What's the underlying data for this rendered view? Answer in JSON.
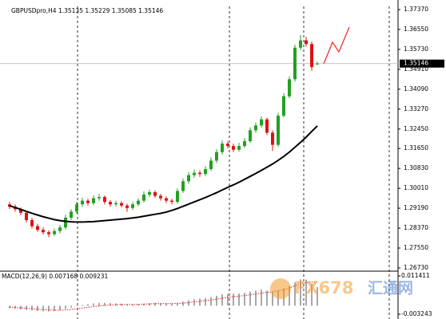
{
  "chart_data": {
    "type": "candlestick",
    "title": "GBPUSDpro,H4  1.35135 1.35229 1.35085 1.35146",
    "up_color": "#22a022",
    "down_color": "#e01010",
    "candles": [
      [
        1.2935,
        1.2945,
        1.2915,
        1.2925
      ],
      [
        1.2925,
        1.2935,
        1.2905,
        1.2915
      ],
      [
        1.2915,
        1.2922,
        1.289,
        1.29
      ],
      [
        1.29,
        1.2908,
        1.286,
        1.287
      ],
      [
        1.287,
        1.288,
        1.2835,
        1.2845
      ],
      [
        1.2845,
        1.2855,
        1.2822,
        1.283
      ],
      [
        1.283,
        1.284,
        1.281,
        1.282
      ],
      [
        1.282,
        1.2828,
        1.28,
        1.2812
      ],
      [
        1.2812,
        1.2835,
        1.2805,
        1.2825
      ],
      [
        1.2825,
        1.285,
        1.2815,
        1.284
      ],
      [
        1.284,
        1.2892,
        1.2832,
        1.288
      ],
      [
        1.288,
        1.2915,
        1.287,
        1.2905
      ],
      [
        1.2905,
        1.2945,
        1.2898,
        1.2935
      ],
      [
        1.2935,
        1.2962,
        1.2925,
        1.295
      ],
      [
        1.295,
        1.2958,
        1.293,
        1.294
      ],
      [
        1.294,
        1.2972,
        1.2932,
        1.296
      ],
      [
        1.296,
        1.2978,
        1.295,
        1.2965
      ],
      [
        1.2965,
        1.2972,
        1.2935,
        1.2945
      ],
      [
        1.2945,
        1.2952,
        1.2925,
        1.2935
      ],
      [
        1.2935,
        1.295,
        1.2926,
        1.294
      ],
      [
        1.294,
        1.2948,
        1.2922,
        1.293
      ],
      [
        1.293,
        1.2938,
        1.2905,
        1.292
      ],
      [
        1.292,
        1.2945,
        1.2912,
        1.2935
      ],
      [
        1.2935,
        1.296,
        1.2928,
        1.295
      ],
      [
        1.295,
        1.2988,
        1.2942,
        1.2975
      ],
      [
        1.2975,
        1.2995,
        1.2965,
        1.2985
      ],
      [
        1.2985,
        1.2992,
        1.2962,
        1.297
      ],
      [
        1.297,
        1.2978,
        1.295,
        1.296
      ],
      [
        1.296,
        1.2968,
        1.294,
        1.295
      ],
      [
        1.295,
        1.2958,
        1.2935,
        1.2945
      ],
      [
        1.2945,
        1.3,
        1.2938,
        1.299
      ],
      [
        1.299,
        1.3042,
        1.2982,
        1.303
      ],
      [
        1.303,
        1.3068,
        1.302,
        1.3055
      ],
      [
        1.3055,
        1.3078,
        1.3045,
        1.3065
      ],
      [
        1.3065,
        1.3075,
        1.3048,
        1.306
      ],
      [
        1.306,
        1.3092,
        1.3052,
        1.308
      ],
      [
        1.308,
        1.3128,
        1.3072,
        1.3115
      ],
      [
        1.3115,
        1.3162,
        1.3105,
        1.315
      ],
      [
        1.315,
        1.3198,
        1.314,
        1.3185
      ],
      [
        1.3185,
        1.3195,
        1.3165,
        1.3175
      ],
      [
        1.3175,
        1.3185,
        1.315,
        1.316
      ],
      [
        1.316,
        1.3188,
        1.3152,
        1.3175
      ],
      [
        1.3175,
        1.3208,
        1.3168,
        1.3195
      ],
      [
        1.3195,
        1.3252,
        1.3188,
        1.324
      ],
      [
        1.324,
        1.3272,
        1.323,
        1.326
      ],
      [
        1.326,
        1.3298,
        1.325,
        1.3285
      ],
      [
        1.3285,
        1.3292,
        1.322,
        1.323
      ],
      [
        1.323,
        1.324,
        1.3155,
        1.318
      ],
      [
        1.318,
        1.3312,
        1.3172,
        1.33
      ],
      [
        1.33,
        1.3392,
        1.3292,
        1.338
      ],
      [
        1.338,
        1.3462,
        1.3372,
        1.345
      ],
      [
        1.345,
        1.3592,
        1.344,
        1.358
      ],
      [
        1.358,
        1.3632,
        1.357,
        1.361
      ],
      [
        1.361,
        1.3625,
        1.3585,
        1.3595
      ],
      [
        1.3595,
        1.3605,
        1.3485,
        1.35
      ],
      [
        1.35135,
        1.35229,
        1.35085,
        1.35146
      ]
    ],
    "ma": {
      "color": "#000000",
      "values": [
        1.2929,
        1.2922,
        1.2914,
        1.2906,
        1.2898,
        1.2891,
        1.2884,
        1.2878,
        1.2872,
        1.2868,
        1.2865,
        1.2863,
        1.2862,
        1.2862,
        1.2863,
        1.2864,
        1.2866,
        1.2868,
        1.287,
        1.2872,
        1.2874,
        1.2876,
        1.2879,
        1.2882,
        1.2886,
        1.289,
        1.2894,
        1.2898,
        1.2903,
        1.291,
        1.2918,
        1.2927,
        1.2936,
        1.2945,
        1.2954,
        1.2963,
        1.2973,
        1.2983,
        1.2994,
        1.3005,
        1.3015,
        1.3026,
        1.3038,
        1.305,
        1.3062,
        1.3075,
        1.3088,
        1.3101,
        1.3116,
        1.3132,
        1.315,
        1.317,
        1.319,
        1.3212,
        1.3235,
        1.3258
      ]
    },
    "ylim": [
      1.26664,
      1.37501
    ],
    "yticks": [
      {
        "value": 1.3737,
        "label": "1.37370"
      },
      {
        "value": 1.3655,
        "label": "1.36550"
      },
      {
        "value": 1.3573,
        "label": "1.35730"
      },
      {
        "value": 1.3491,
        "label": "1.34910"
      },
      {
        "value": 1.3409,
        "label": "1.34090"
      },
      {
        "value": 1.3327,
        "label": "1.33270"
      },
      {
        "value": 1.3245,
        "label": "1.32450"
      },
      {
        "value": 1.3165,
        "label": "1.31650"
      },
      {
        "value": 1.3083,
        "label": "1.30830"
      },
      {
        "value": 1.3001,
        "label": "1.30010"
      },
      {
        "value": 1.2919,
        "label": "1.29190"
      },
      {
        "value": 1.2837,
        "label": "1.28370"
      },
      {
        "value": 1.2755,
        "label": "1.27550"
      },
      {
        "value": 1.2673,
        "label": "1.26730"
      }
    ],
    "last_price": 1.35146,
    "indicator": {
      "type": "bar",
      "title": "MACD(12,26,9) 0.007168 0.009231",
      "color": "#a8a8a8",
      "values": [
        -0.001,
        -0.0012,
        -0.0014,
        -0.0016,
        -0.0018,
        -0.002,
        -0.0021,
        -0.0022,
        -0.002,
        -0.0017,
        -0.0012,
        -0.0007,
        -0.0002,
        0.0003,
        0.0006,
        0.0009,
        0.0011,
        0.0011,
        0.001,
        0.0009,
        0.0008,
        0.0006,
        0.0005,
        0.0006,
        0.0008,
        0.001,
        0.0011,
        0.001,
        0.0009,
        0.0008,
        0.0011,
        0.0016,
        0.0021,
        0.0025,
        0.0027,
        0.0029,
        0.0033,
        0.0038,
        0.0044,
        0.0046,
        0.0046,
        0.0047,
        0.0049,
        0.0054,
        0.0058,
        0.0062,
        0.0058,
        0.0052,
        0.0058,
        0.0066,
        0.0076,
        0.009,
        0.0101,
        0.01,
        0.0085,
        0.007168
      ],
      "signal": {
        "color": "#e02020",
        "values": [
          -0.0005,
          -0.0007,
          -0.0008,
          -0.001,
          -0.0012,
          -0.0013,
          -0.0015,
          -0.0016,
          -0.0017,
          -0.0017,
          -0.0016,
          -0.0014,
          -0.0012,
          -0.0009,
          -0.0006,
          -0.0003,
          -0.0001,
          0.0001,
          0.0003,
          0.0004,
          0.0005,
          0.0005,
          0.0005,
          0.0005,
          0.0006,
          0.0007,
          0.0008,
          0.0008,
          0.0008,
          0.0008,
          0.0009,
          0.001,
          0.0012,
          0.0015,
          0.0017,
          0.002,
          0.0022,
          0.0025,
          0.0029,
          0.0032,
          0.0035,
          0.0037,
          0.0039,
          0.0042,
          0.0045,
          0.0048,
          0.0051,
          0.0053,
          0.0058,
          0.0062,
          0.0068,
          0.0076,
          0.0083,
          0.0088,
          0.0091,
          0.009231
        ]
      },
      "ylim": [
        -0.00446,
        0.01324
      ],
      "yticks": [
        0.011411,
        -0.003243
      ]
    },
    "annotations": [
      "FX678",
      "汇通网"
    ]
  }
}
